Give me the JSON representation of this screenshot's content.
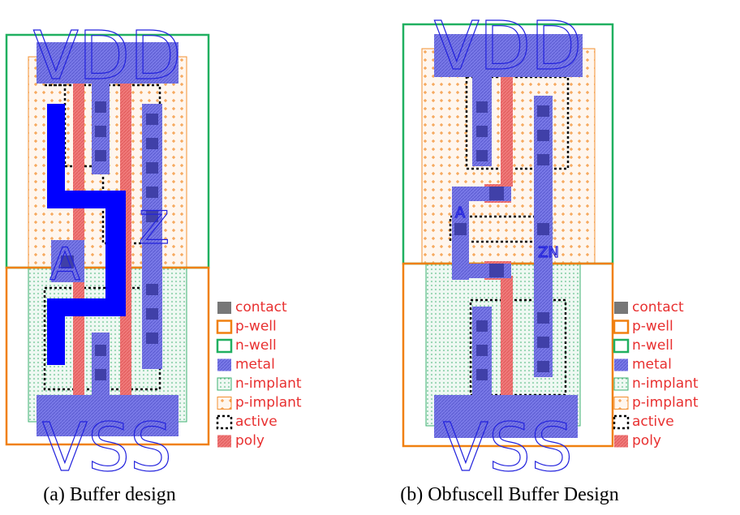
{
  "panels": [
    {
      "labels": {
        "vdd": "VDD",
        "vss": "VSS",
        "input": "A",
        "output": "Z"
      },
      "legend": [
        "contact",
        "p-well",
        "n-well",
        "metal",
        "n-implant",
        "p-implant",
        "active",
        "poly"
      ],
      "caption": "(a) Buffer design"
    },
    {
      "labels": {
        "vdd": "VDD",
        "vss": "VSS",
        "input": "A",
        "output": "ZN"
      },
      "legend": [
        "contact",
        "p-well",
        "n-well",
        "metal",
        "n-implant",
        "p-implant",
        "active",
        "poly"
      ],
      "caption": "(b) Obfuscell Buffer Design"
    }
  ]
}
